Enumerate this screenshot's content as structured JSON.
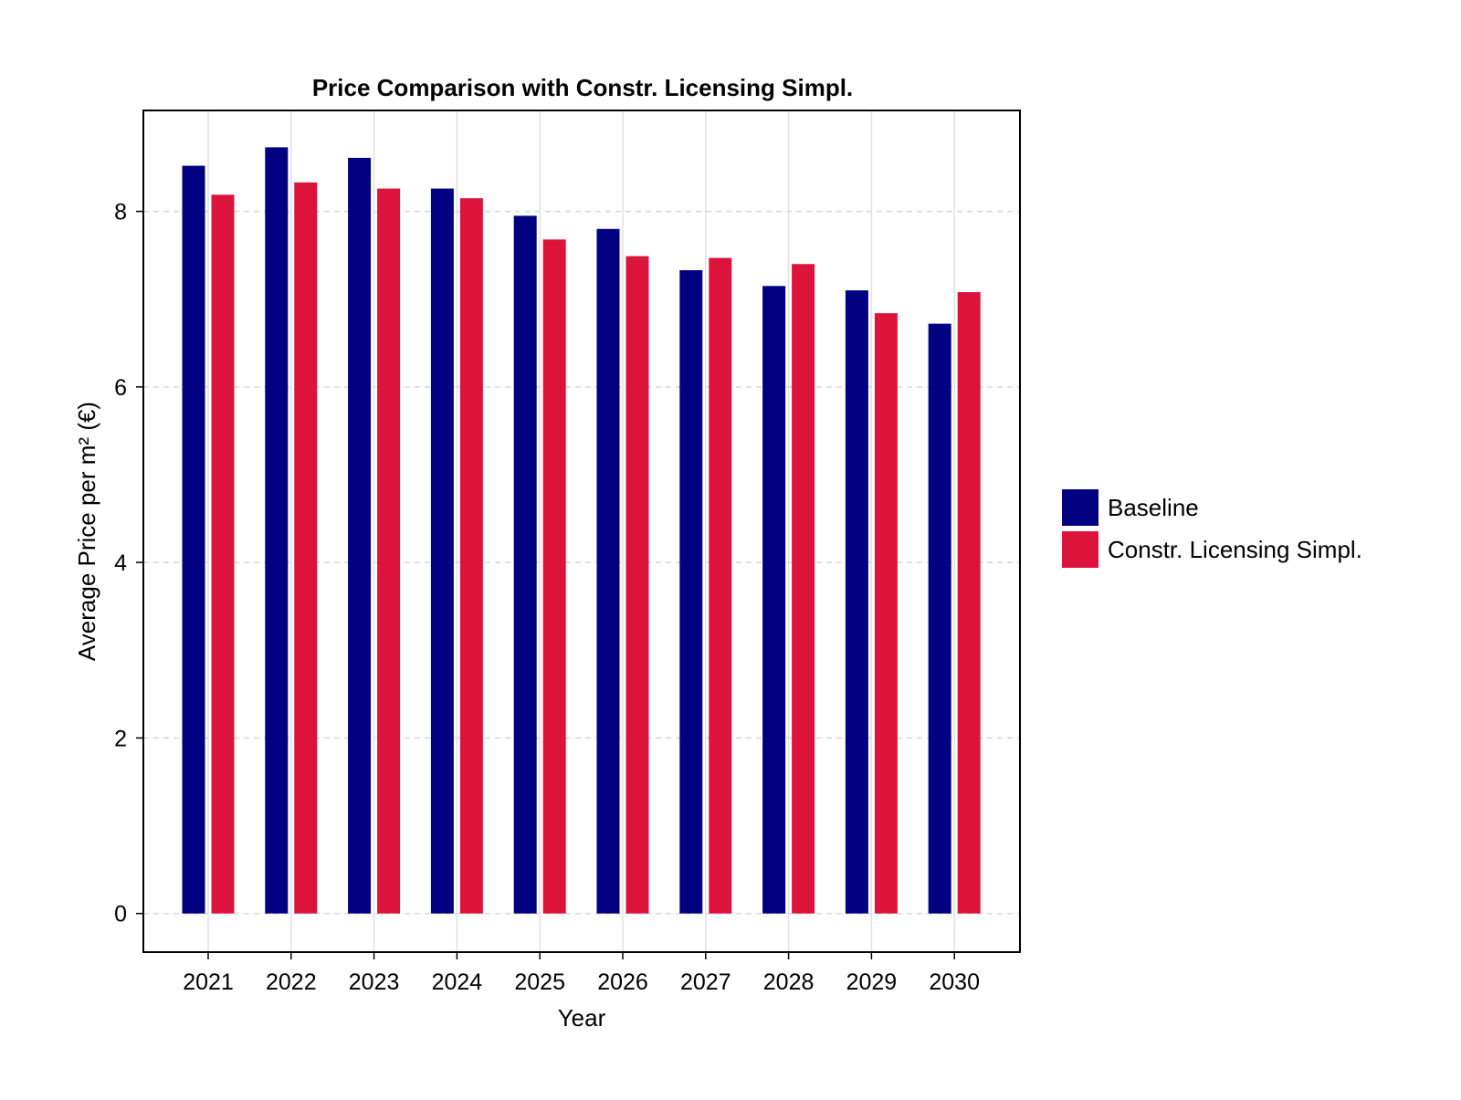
{
  "chart_data": {
    "type": "bar",
    "title": "Price Comparison with Constr. Licensing Simpl.",
    "xlabel": "Year",
    "ylabel": "Average Price per m² (€)",
    "categories": [
      "2021",
      "2022",
      "2023",
      "2024",
      "2025",
      "2026",
      "2027",
      "2028",
      "2029",
      "2030"
    ],
    "series": [
      {
        "name": "Baseline",
        "color": "#000080",
        "values": [
          8.52,
          8.73,
          8.61,
          8.26,
          7.95,
          7.8,
          7.33,
          7.15,
          7.1,
          6.72
        ]
      },
      {
        "name": "Constr. Licensing Simpl.",
        "color": "#DC143C",
        "values": [
          8.19,
          8.33,
          8.26,
          8.15,
          7.68,
          7.49,
          7.47,
          7.4,
          6.84,
          7.08
        ]
      }
    ],
    "ylim": [
      -0.44,
      9.15
    ],
    "yticks": [
      0,
      2,
      4,
      6,
      8
    ],
    "grid": true,
    "legend_position": "right"
  }
}
